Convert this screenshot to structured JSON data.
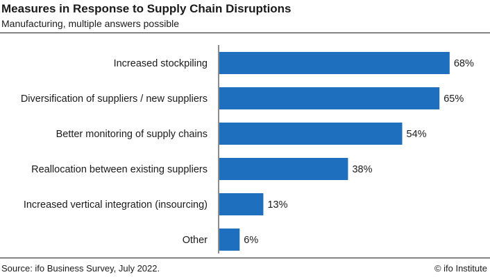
{
  "header": {
    "title": "Measures in Response to Supply Chain Disruptions",
    "subtitle": "Manufacturing, multiple answers possible"
  },
  "footer": {
    "source": "Source: ifo Business Survey, July 2022.",
    "credit": "© ifo Institute"
  },
  "chart_data": {
    "type": "bar",
    "orientation": "horizontal",
    "title": "Measures in Response to Supply Chain Disruptions",
    "subtitle": "Manufacturing, multiple answers possible",
    "categories": [
      "Increased stockpiling",
      "Diversification of suppliers / new suppliers",
      "Better monitoring of supply chains",
      "Reallocation between existing suppliers",
      "Increased vertical integration (insourcing)",
      "Other"
    ],
    "values": [
      68,
      65,
      54,
      38,
      13,
      6
    ],
    "data_labels": [
      "68%",
      "65%",
      "54%",
      "38%",
      "13%",
      "6%"
    ],
    "unit": "%",
    "xlim": [
      0,
      100
    ],
    "grid": false,
    "legend": "none",
    "bar_color": "#1f6fbf"
  }
}
